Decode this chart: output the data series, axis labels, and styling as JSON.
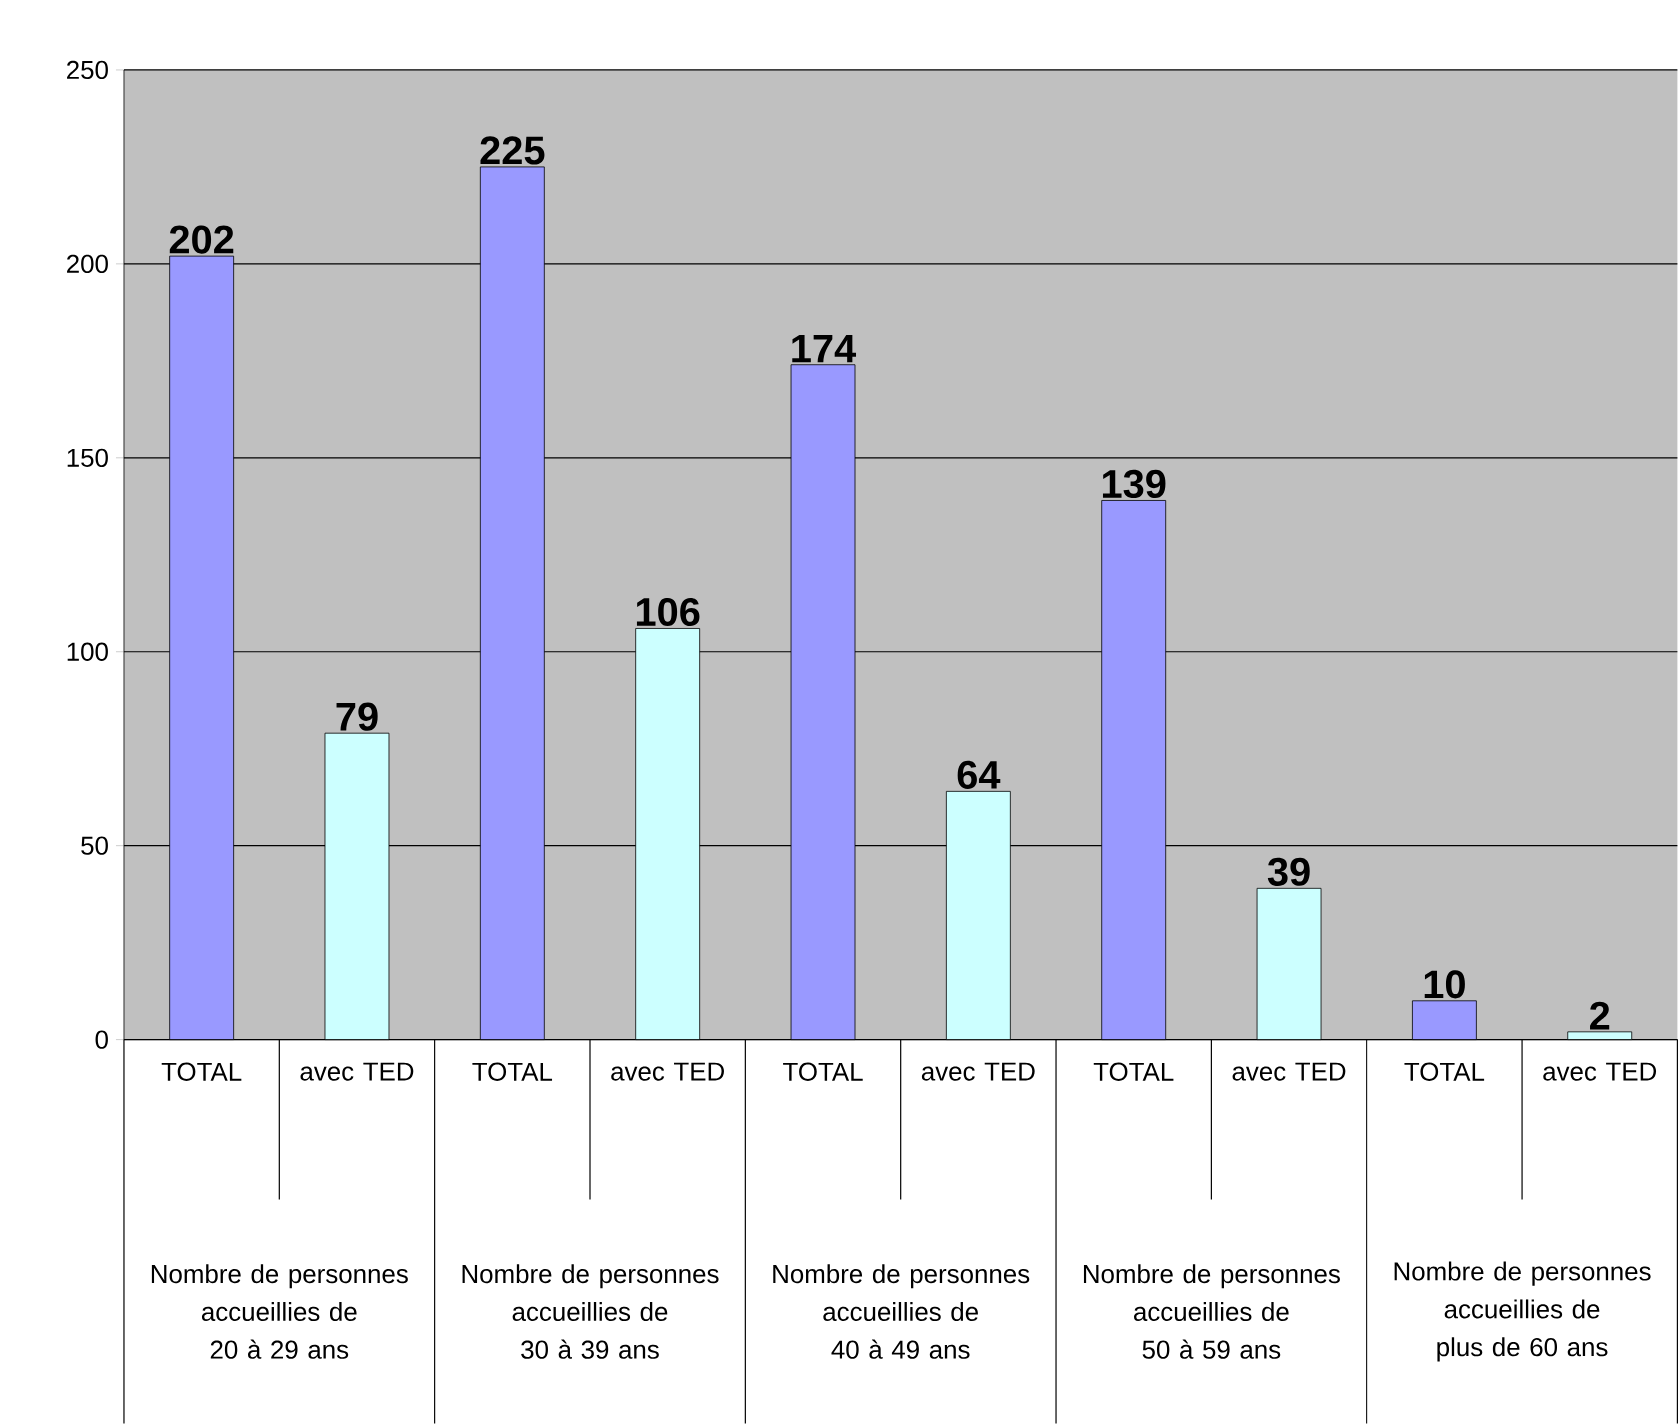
{
  "chart_data": {
    "type": "bar",
    "categories": [
      "TOTAL",
      "avec TED",
      "TOTAL",
      "avec TED",
      "TOTAL",
      "avec TED",
      "TOTAL",
      "avec TED",
      "TOTAL",
      "avec TED"
    ],
    "values": [
      202,
      79,
      225,
      106,
      174,
      64,
      139,
      39,
      10,
      2
    ],
    "colors": [
      "#9999ff",
      "#ccffff",
      "#9999ff",
      "#ccffff",
      "#9999ff",
      "#ccffff",
      "#9999ff",
      "#ccffff",
      "#9999ff",
      "#ccffff"
    ],
    "ylim": [
      0,
      250
    ],
    "yticks": [
      0,
      50,
      100,
      150,
      200,
      250
    ],
    "grid": "y",
    "data_labels": true,
    "annotations": [
      "Nombre de personnes accueillies de 20 à 29 ans",
      "Nombre de personnes accueillies de 30 à 39 ans",
      "Nombre de personnes accueillies de 40 à 49 ans",
      "Nombre de personnes accueillies de 50 à 59 ans",
      "Nombre de personnes accueillies de plus de 60 ans"
    ]
  }
}
